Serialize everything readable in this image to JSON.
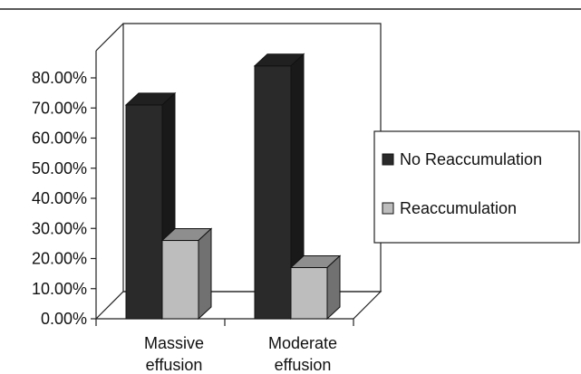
{
  "chart_data": {
    "type": "bar",
    "categories": [
      "Massive\neffusion",
      "Moderate\neffusion"
    ],
    "series": [
      {
        "name": "No Reaccumulation",
        "values": [
          71,
          84
        ],
        "color": "#2a2a2a"
      },
      {
        "name": "Reaccumulation",
        "values": [
          26,
          17
        ],
        "color": "#bdbdbd"
      }
    ],
    "yticks": [
      "0.00%",
      "10.00%",
      "20.00%",
      "30.00%",
      "40.00%",
      "50.00%",
      "60.00%",
      "70.00%",
      "80.00%"
    ],
    "ylim": [
      0,
      80
    ],
    "grid": false,
    "legend": "right",
    "style": "3d-column"
  }
}
